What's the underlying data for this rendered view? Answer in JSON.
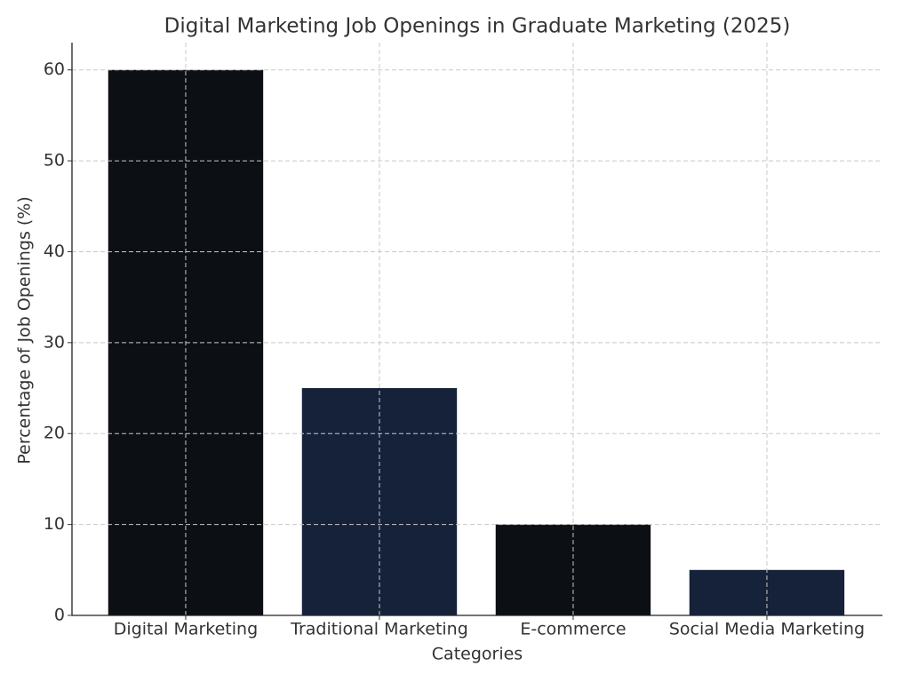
{
  "chart_data": {
    "type": "bar",
    "title": "Digital Marketing Job Openings in Graduate Marketing (2025)",
    "x_label": "Categories",
    "y_label": "Percentage of Job Openings (%)",
    "categories": [
      "Digital Marketing",
      "Traditional Marketing",
      "E-commerce",
      "Social Media Marketing"
    ],
    "values": [
      60,
      25,
      10,
      5
    ],
    "colors": [
      "#0c0f14",
      "#16213a",
      "#0c0f14",
      "#16213a"
    ],
    "ylim": [
      0,
      63
    ],
    "yticks": [
      0,
      10,
      20,
      30,
      40,
      50,
      60
    ],
    "grid": true
  }
}
